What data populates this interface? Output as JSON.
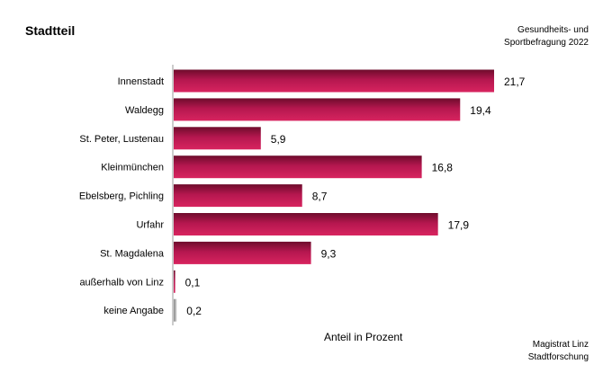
{
  "chart_data": {
    "type": "bar",
    "orientation": "horizontal",
    "title": "Stadtteil",
    "xlabel": "Anteil in Prozent",
    "categories": [
      "Innenstadt",
      "Waldegg",
      "St. Peter, Lustenau",
      "Kleinmünchen",
      "Ebelsberg, Pichling",
      "Urfahr",
      "St. Magdalena",
      "außerhalb von Linz",
      "keine Angabe"
    ],
    "values": [
      21.7,
      19.4,
      5.9,
      16.8,
      8.7,
      17.9,
      9.3,
      0.1,
      0.2
    ],
    "value_labels": [
      "21,7",
      "19,4",
      "5,9",
      "16,8",
      "8,7",
      "17,9",
      "9,3",
      "0,1",
      "0,2"
    ],
    "bar_colors": [
      "#b5174f",
      "#b5174f",
      "#b5174f",
      "#b5174f",
      "#b5174f",
      "#b5174f",
      "#b5174f",
      "#b5174f",
      "#b8b8b8"
    ],
    "xlim": [
      0,
      21.7
    ]
  },
  "header": {
    "source_line1": "Gesundheits- und",
    "source_line2": "Sportbefragung 2022"
  },
  "footer": {
    "credit_line1": "Magistrat Linz",
    "credit_line2": "Stadtforschung"
  }
}
